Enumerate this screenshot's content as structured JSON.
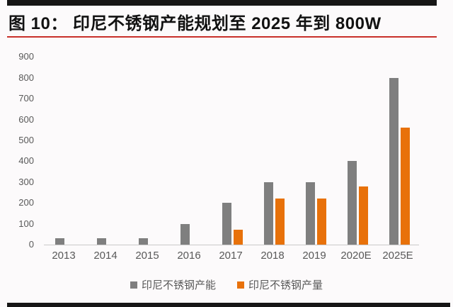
{
  "page": {
    "title": "图 10：  印尼不锈钢产能规划至 2025 年到 800W"
  },
  "colors": {
    "capacity": "#7F7F7F",
    "output": "#E8710A",
    "title_rule": "#C8302A",
    "frame_bar": "#161616",
    "axis_text": "#595959",
    "axis_line": "#C9C9C9",
    "background": "#FCFAFB"
  },
  "chart_data": {
    "type": "bar",
    "title": "印尼不锈钢产能规划至 2025 年到 800W",
    "categories": [
      "2013",
      "2014",
      "2015",
      "2016",
      "2017",
      "2018",
      "2019",
      "2020E",
      "2025E"
    ],
    "series": [
      {
        "name": "印尼不锈钢产能",
        "color_key": "capacity",
        "values": [
          30,
          30,
          30,
          100,
          200,
          300,
          300,
          400,
          800
        ]
      },
      {
        "name": "印尼不锈钢产量",
        "color_key": "output",
        "values": [
          0,
          0,
          0,
          0,
          70,
          220,
          220,
          280,
          560
        ]
      }
    ],
    "xlabel": "",
    "ylabel": "",
    "ylim": [
      0,
      900
    ],
    "ytick_step": 100,
    "grid": false,
    "legend_position": "bottom"
  }
}
